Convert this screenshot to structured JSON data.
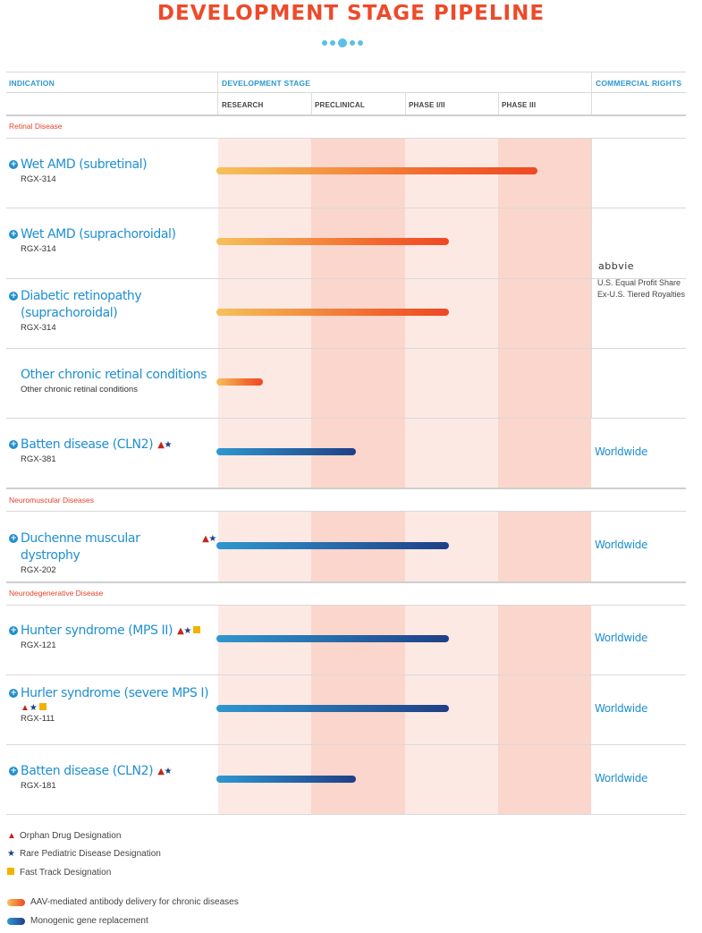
{
  "title": "DEVELOPMENT STAGE PIPELINE",
  "headers": {
    "indication": "INDICATION",
    "development_stage": "DEVELOPMENT STAGE",
    "commercial_rights": "COMMERCIAL RIGHTS",
    "stages": [
      "RESEARCH",
      "PRECLINICAL",
      "PHASE I/II",
      "PHASE III"
    ]
  },
  "sections": [
    "Retinal Disease",
    "Neuromuscular Diseases",
    "Neurodegenerative Disease"
  ],
  "colors": {
    "title": "#ee4a2a",
    "blue_text": "#1f8fd0",
    "band_light": "#fde9e4",
    "band_dark": "#fbd6cc",
    "aav_start": "#f6c15a",
    "aav_end": "#ef4824",
    "mono_start": "#2f97cf",
    "mono_end": "#1f3f86",
    "orphan": "#c0281c",
    "pediatric": "#1c3f8c",
    "fast_track": "#f3b200"
  },
  "chart_data": {
    "type": "bar",
    "orientation": "horizontal",
    "stage_axis": [
      "RESEARCH",
      "PRECLINICAL",
      "PHASE I/II",
      "PHASE III"
    ],
    "progress_unit": "stages completed (0-4)",
    "rows": [
      {
        "name": "Wet AMD (subretinal)",
        "code": "RGX-314",
        "section": "Retinal Disease",
        "progress": 3.45,
        "type": "aav",
        "icon": true,
        "orphan": false,
        "pediatric": false,
        "fast_track": false
      },
      {
        "name": "Wet AMD (suprachoroidal)",
        "code": "RGX-314",
        "section": "Retinal Disease",
        "progress": 2.5,
        "type": "aav",
        "icon": true,
        "orphan": false,
        "pediatric": false,
        "fast_track": false
      },
      {
        "name": "Diabetic retinopathy (suprachoroidal)",
        "code": "RGX-314",
        "section": "Retinal Disease",
        "progress": 2.5,
        "type": "aav",
        "icon": true,
        "orphan": false,
        "pediatric": false,
        "fast_track": false
      },
      {
        "name": "Other chronic retinal conditions",
        "code": "Other chronic retinal conditions",
        "section": "Retinal Disease",
        "progress": 0.5,
        "type": "aav",
        "icon": false,
        "orphan": false,
        "pediatric": false,
        "fast_track": false
      },
      {
        "name": "Batten disease (CLN2)",
        "code": "RGX-381",
        "section": "Retinal Disease",
        "progress": 1.5,
        "type": "mono",
        "icon": true,
        "orphan": true,
        "pediatric": true,
        "fast_track": false,
        "rights": "Worldwide"
      },
      {
        "name": "Duchenne muscular dystrophy",
        "code": "RGX-202",
        "section": "Neuromuscular Diseases",
        "progress": 2.5,
        "type": "mono",
        "icon": true,
        "orphan": true,
        "pediatric": true,
        "fast_track": false,
        "rights": "Worldwide"
      },
      {
        "name": "Hunter syndrome (MPS II)",
        "code": "RGX-121",
        "section": "Neurodegenerative Disease",
        "progress": 2.5,
        "type": "mono",
        "icon": true,
        "orphan": true,
        "pediatric": true,
        "fast_track": true,
        "rights": "Worldwide"
      },
      {
        "name": "Hurler syndrome (severe MPS I)",
        "code": "RGX-111",
        "section": "Neurodegenerative Disease",
        "progress": 2.5,
        "type": "mono",
        "icon": true,
        "orphan": true,
        "pediatric": true,
        "fast_track": true,
        "rights": "Worldwide"
      },
      {
        "name": "Batten disease (CLN2)",
        "code": "RGX-181",
        "section": "Neurodegenerative Disease",
        "progress": 1.5,
        "type": "mono",
        "icon": true,
        "orphan": true,
        "pediatric": true,
        "fast_track": false,
        "rights": "Worldwide"
      }
    ]
  },
  "partner": {
    "name": "abbvie",
    "line1": "U.S. Equal Profit Share",
    "line2": "Ex-U.S. Tiered Royalties"
  },
  "legend": {
    "orphan": "Orphan Drug Designation",
    "pediatric": "Rare Pediatric Disease Designation",
    "fast_track": "Fast Track Designation",
    "aav": "AAV-mediated antibody delivery for chronic diseases",
    "mono": "Monogenic gene replacement"
  }
}
